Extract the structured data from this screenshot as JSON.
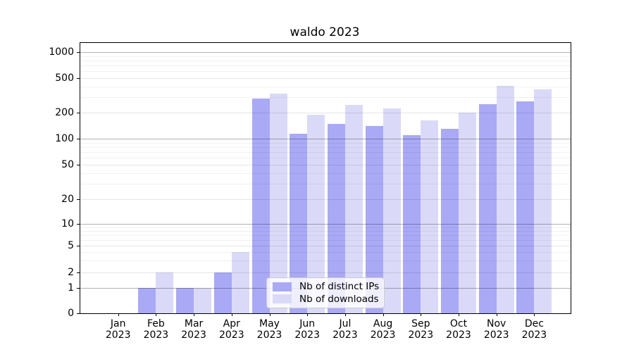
{
  "figure_title": "waldo 2023",
  "chart_data": {
    "type": "bar",
    "title": "waldo 2023",
    "categories": [
      "Jan 2023",
      "Feb 2023",
      "Mar 2023",
      "Apr 2023",
      "May 2023",
      "Jun 2023",
      "Jul 2023",
      "Aug 2023",
      "Sep 2023",
      "Oct 2023",
      "Nov 2023",
      "Dec 2023"
    ],
    "month_labels": [
      "Jan",
      "Feb",
      "Mar",
      "Apr",
      "May",
      "Jun",
      "Jul",
      "Aug",
      "Sep",
      "Oct",
      "Nov",
      "Dec"
    ],
    "year_label": "2023",
    "series": [
      {
        "name": "Nb of distinct IPs",
        "color": "#a9a9f6",
        "values": [
          0,
          1,
          1,
          2,
          290,
          115,
          148,
          140,
          110,
          130,
          250,
          270
        ]
      },
      {
        "name": "Nb of downloads",
        "color": "#dadaf8",
        "values": [
          0,
          2,
          1,
          4,
          330,
          190,
          245,
          222,
          162,
          200,
          405,
          370
        ]
      }
    ],
    "xlabel": "",
    "ylabel": "",
    "y_axis": {
      "scale": "log-like (compressed near zero, zero shown)",
      "tick_values": [
        0,
        1,
        2,
        5,
        10,
        20,
        50,
        100,
        200,
        500,
        1000
      ],
      "range": [
        0,
        1300
      ],
      "grid": "horizontal major and minor gridlines"
    },
    "legend": {
      "position": "lower center-left inside plot",
      "entries": [
        "Nb of distinct IPs",
        "Nb of downloads"
      ]
    }
  }
}
